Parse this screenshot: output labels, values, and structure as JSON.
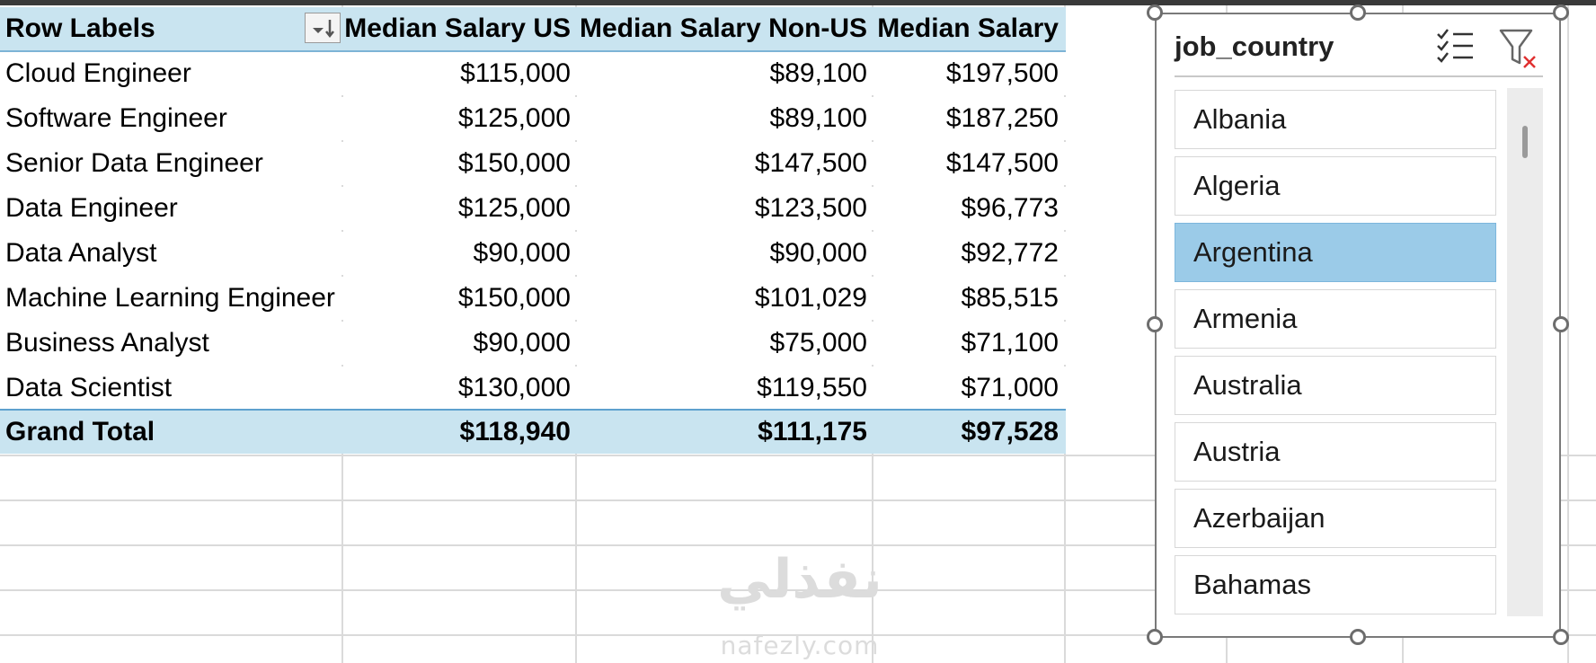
{
  "pivot": {
    "headers": [
      "Row Labels",
      "Median Salary US",
      "Median Salary Non-US",
      "Median Salary"
    ],
    "rows": [
      [
        "Cloud Engineer",
        "$115,000",
        "$89,100",
        "$197,500"
      ],
      [
        "Software Engineer",
        "$125,000",
        "$89,100",
        "$187,250"
      ],
      [
        "Senior Data Engineer",
        "$150,000",
        "$147,500",
        "$147,500"
      ],
      [
        "Data Engineer",
        "$125,000",
        "$123,500",
        "$96,773"
      ],
      [
        "Data Analyst",
        "$90,000",
        "$90,000",
        "$92,772"
      ],
      [
        "Machine Learning Engineer",
        "$150,000",
        "$101,029",
        "$85,515"
      ],
      [
        "Business Analyst",
        "$90,000",
        "$75,000",
        "$71,100"
      ],
      [
        "Data Scientist",
        "$130,000",
        "$119,550",
        "$71,000"
      ]
    ],
    "total": [
      "Grand Total",
      "$118,940",
      "$111,175",
      "$97,528"
    ]
  },
  "slicer": {
    "title": "job_country",
    "items": [
      "Albania",
      "Algeria",
      "Argentina",
      "Armenia",
      "Australia",
      "Austria",
      "Azerbaijan",
      "Bahamas"
    ],
    "selected": "Argentina"
  },
  "watermark": {
    "arabic": "نفذلي",
    "latin": "nafezly.com"
  },
  "colors": {
    "header_fill": "#c9e4f0",
    "selected_item": "#9bcbe8"
  },
  "icons": {
    "sort": "sort-descending-icon",
    "multi_select": "multi-select-icon",
    "clear_filter": "clear-filter-icon"
  }
}
